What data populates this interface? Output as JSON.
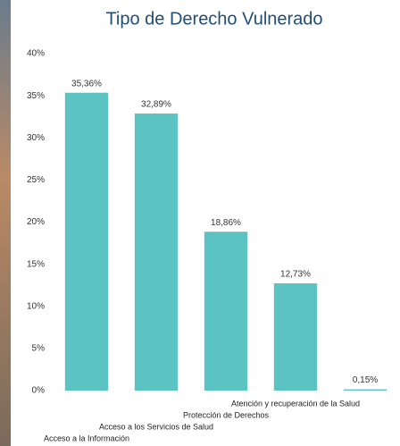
{
  "chart_data": {
    "type": "bar",
    "title": "Tipo de Derecho Vulnerado",
    "categories": [
      "Acceso a la Información",
      "Acceso a los Servicios de Salud",
      "Protección de Derechos",
      "Atención y recuperación de la Salud",
      null
    ],
    "values": [
      35.36,
      32.89,
      18.86,
      12.73,
      0.15
    ],
    "value_labels": [
      "35,36%",
      "32,89%",
      "18,86%",
      "12,73%",
      "0,15%"
    ],
    "color": "#5cc3c3",
    "ylim": [
      0,
      40
    ],
    "yticks": [
      {
        "value": 0,
        "label": "0%"
      },
      {
        "value": 5,
        "label": "5%"
      },
      {
        "value": 10,
        "label": "10%"
      },
      {
        "value": 15,
        "label": "15%"
      },
      {
        "value": 20,
        "label": "20%"
      },
      {
        "value": 25,
        "label": "25%"
      },
      {
        "value": 30,
        "label": "30%"
      },
      {
        "value": 35,
        "label": "35%"
      },
      {
        "value": 40,
        "label": "40%"
      }
    ],
    "grid": false
  }
}
